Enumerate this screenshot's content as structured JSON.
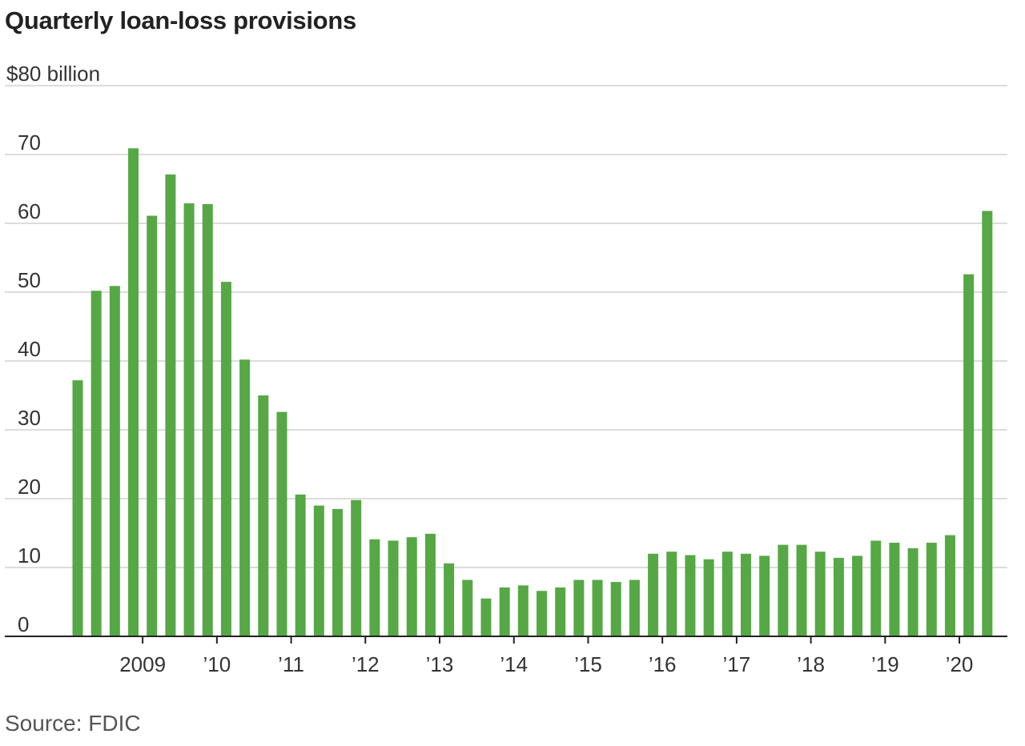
{
  "chart_data": {
    "type": "bar",
    "title": "Quarterly loan-loss provisions",
    "unit_label": "$80 billion",
    "source": "Source: FDIC",
    "ylim": [
      0,
      80
    ],
    "y_ticks": [
      {
        "value": 0,
        "label": "0"
      },
      {
        "value": 10,
        "label": "10"
      },
      {
        "value": 20,
        "label": "20"
      },
      {
        "value": 30,
        "label": "30"
      },
      {
        "value": 40,
        "label": "40"
      },
      {
        "value": 50,
        "label": "50"
      },
      {
        "value": 60,
        "label": "60"
      },
      {
        "value": 70,
        "label": "70"
      }
    ],
    "x_ticks": [
      {
        "quarter_index": 4,
        "label": "2009"
      },
      {
        "quarter_index": 8,
        "label": "’10"
      },
      {
        "quarter_index": 12,
        "label": "’11"
      },
      {
        "quarter_index": 16,
        "label": "’12"
      },
      {
        "quarter_index": 20,
        "label": "’13"
      },
      {
        "quarter_index": 24,
        "label": "’14"
      },
      {
        "quarter_index": 28,
        "label": "’15"
      },
      {
        "quarter_index": 32,
        "label": "’16"
      },
      {
        "quarter_index": 36,
        "label": "’17"
      },
      {
        "quarter_index": 40,
        "label": "’18"
      },
      {
        "quarter_index": 44,
        "label": "’19"
      },
      {
        "quarter_index": 48,
        "label": "’20"
      }
    ],
    "grid": true,
    "bar_color": "#56a845",
    "values": [
      37.2,
      50.2,
      50.9,
      70.9,
      61.1,
      67.1,
      62.9,
      62.8,
      51.5,
      40.2,
      35.0,
      32.6,
      20.6,
      19.0,
      18.5,
      19.8,
      14.1,
      13.9,
      14.4,
      14.9,
      10.6,
      8.2,
      5.5,
      7.1,
      7.4,
      6.6,
      7.1,
      8.2,
      8.2,
      7.9,
      8.2,
      12.0,
      12.3,
      11.8,
      11.2,
      12.3,
      12.0,
      11.7,
      13.3,
      13.3,
      12.3,
      11.4,
      11.7,
      13.9,
      13.6,
      12.8,
      13.6,
      14.7,
      52.6,
      61.8
    ]
  }
}
